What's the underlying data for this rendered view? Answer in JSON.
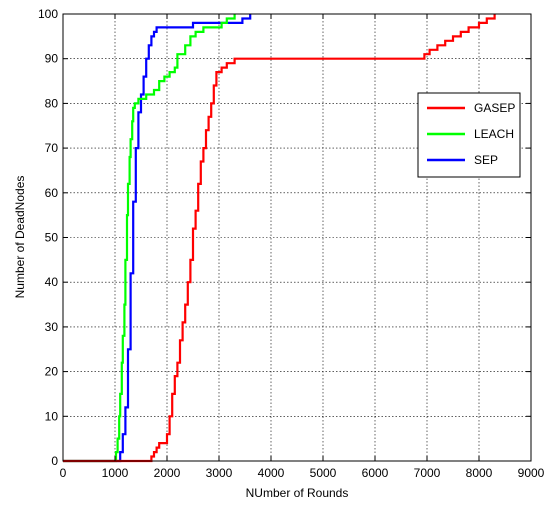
{
  "chart_data": {
    "type": "line",
    "title": "",
    "xlabel": "NUmber of Rounds",
    "ylabel": "Number of DeadNodes",
    "xlim": [
      0,
      9000
    ],
    "ylim": [
      0,
      100
    ],
    "x_ticks": [
      "0",
      "1000",
      "2000",
      "3000",
      "4000",
      "5000",
      "6000",
      "7000",
      "8000",
      "9000"
    ],
    "y_ticks": [
      "0",
      "10",
      "20",
      "30",
      "40",
      "50",
      "60",
      "70",
      "80",
      "90",
      "100"
    ],
    "grid": true,
    "legend_position": "right",
    "series": [
      {
        "name": "GASEP",
        "color": "#ff0000",
        "points": [
          [
            0,
            0
          ],
          [
            1650,
            0
          ],
          [
            1700,
            1
          ],
          [
            1750,
            2
          ],
          [
            1800,
            3
          ],
          [
            1850,
            4
          ],
          [
            1950,
            4
          ],
          [
            2000,
            6
          ],
          [
            2050,
            10
          ],
          [
            2100,
            15
          ],
          [
            2150,
            19
          ],
          [
            2200,
            22
          ],
          [
            2250,
            27
          ],
          [
            2300,
            31
          ],
          [
            2350,
            35
          ],
          [
            2400,
            40
          ],
          [
            2450,
            45
          ],
          [
            2500,
            52
          ],
          [
            2550,
            56
          ],
          [
            2600,
            62
          ],
          [
            2650,
            67
          ],
          [
            2700,
            70
          ],
          [
            2750,
            74
          ],
          [
            2800,
            77
          ],
          [
            2850,
            80
          ],
          [
            2900,
            84
          ],
          [
            2950,
            87
          ],
          [
            3050,
            88
          ],
          [
            3150,
            89
          ],
          [
            3300,
            90
          ],
          [
            6000,
            90
          ],
          [
            6900,
            90
          ],
          [
            6950,
            91
          ],
          [
            7050,
            92
          ],
          [
            7200,
            93
          ],
          [
            7350,
            94
          ],
          [
            7500,
            95
          ],
          [
            7650,
            96
          ],
          [
            7800,
            97
          ],
          [
            8000,
            98
          ],
          [
            8150,
            99
          ],
          [
            8300,
            100
          ]
        ]
      },
      {
        "name": "LEACH",
        "color": "#00ff00",
        "points": [
          [
            0,
            0
          ],
          [
            1000,
            0
          ],
          [
            1020,
            2
          ],
          [
            1050,
            5
          ],
          [
            1080,
            10
          ],
          [
            1100,
            15
          ],
          [
            1130,
            22
          ],
          [
            1150,
            28
          ],
          [
            1180,
            35
          ],
          [
            1200,
            45
          ],
          [
            1230,
            55
          ],
          [
            1250,
            62
          ],
          [
            1280,
            68
          ],
          [
            1300,
            72
          ],
          [
            1330,
            76
          ],
          [
            1350,
            79
          ],
          [
            1380,
            80
          ],
          [
            1450,
            81
          ],
          [
            1600,
            82
          ],
          [
            1750,
            83
          ],
          [
            1850,
            85
          ],
          [
            1950,
            86
          ],
          [
            2050,
            87
          ],
          [
            2150,
            88
          ],
          [
            2200,
            91
          ],
          [
            2350,
            93
          ],
          [
            2450,
            95
          ],
          [
            2550,
            96
          ],
          [
            2700,
            97
          ],
          [
            3000,
            97
          ],
          [
            3050,
            98
          ],
          [
            3150,
            99
          ],
          [
            3300,
            100
          ]
        ]
      },
      {
        "name": "SEP",
        "color": "#0000ff",
        "points": [
          [
            0,
            0
          ],
          [
            1050,
            0
          ],
          [
            1100,
            2
          ],
          [
            1150,
            6
          ],
          [
            1200,
            12
          ],
          [
            1250,
            25
          ],
          [
            1300,
            42
          ],
          [
            1350,
            58
          ],
          [
            1400,
            70
          ],
          [
            1450,
            78
          ],
          [
            1500,
            82
          ],
          [
            1550,
            86
          ],
          [
            1600,
            90
          ],
          [
            1650,
            93
          ],
          [
            1700,
            95
          ],
          [
            1750,
            96
          ],
          [
            1800,
            97
          ],
          [
            2000,
            97
          ],
          [
            2400,
            97
          ],
          [
            2500,
            98
          ],
          [
            3300,
            98
          ],
          [
            3450,
            99
          ],
          [
            3550,
            99
          ],
          [
            3600,
            100
          ]
        ]
      }
    ]
  }
}
